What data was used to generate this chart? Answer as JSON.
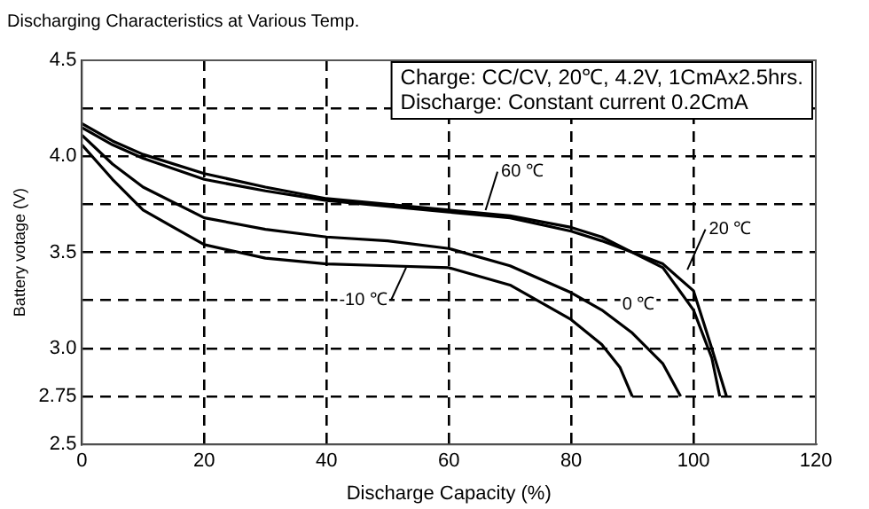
{
  "chart_data": {
    "type": "line",
    "title": "Discharging Characteristics at Various Temp.",
    "xlabel": "Discharge Capacity (%)",
    "ylabel": "Battery votage (V)",
    "annotations": [
      "Charge: CC/CV, 20℃, 4.2V, 1CmAx2.5hrs.",
      "Discharge: Constant current 0.2CmA"
    ],
    "xlim": [
      0,
      120
    ],
    "xticks": [
      0,
      20,
      40,
      60,
      80,
      100,
      120
    ],
    "ylim": [
      2.5,
      4.5
    ],
    "yticks": [
      2.5,
      2.75,
      {
        "value": 3,
        "label": "3.0"
      },
      {
        "value": 3.25,
        "label": null
      },
      3.5,
      {
        "value": 3.75,
        "label": null
      },
      {
        "value": 4,
        "label": "4.0"
      },
      {
        "value": 4.25,
        "label": null
      },
      4.5
    ],
    "grid": true,
    "legend": false,
    "marker": "none",
    "line_style": "solid",
    "series": [
      {
        "name": "60 ℃",
        "color": "#000000",
        "x": [
          0,
          5,
          10,
          20,
          30,
          40,
          50,
          60,
          70,
          80,
          85,
          90,
          95,
          100,
          103,
          104.3
        ],
        "values": [
          4.17,
          4.08,
          4.01,
          3.91,
          3.84,
          3.78,
          3.75,
          3.72,
          3.69,
          3.63,
          3.58,
          3.5,
          3.42,
          3.2,
          2.95,
          2.75
        ]
      },
      {
        "name": "20 ℃",
        "color": "#000000",
        "x": [
          0,
          5,
          10,
          20,
          30,
          40,
          50,
          60,
          70,
          80,
          85,
          90,
          95,
          100,
          103,
          105.4
        ],
        "values": [
          4.15,
          4.06,
          3.99,
          3.88,
          3.82,
          3.77,
          3.74,
          3.71,
          3.68,
          3.61,
          3.56,
          3.5,
          3.44,
          3.3,
          3.0,
          2.75
        ]
      },
      {
        "name": "0 ℃",
        "color": "#000000",
        "x": [
          0,
          5,
          10,
          20,
          30,
          40,
          50,
          60,
          70,
          80,
          85,
          90,
          95,
          97.9
        ],
        "values": [
          4.11,
          3.96,
          3.84,
          3.68,
          3.62,
          3.58,
          3.56,
          3.52,
          3.43,
          3.29,
          3.2,
          3.08,
          2.92,
          2.75
        ]
      },
      {
        "name": "-10 ℃",
        "color": "#000000",
        "x": [
          0,
          5,
          10,
          20,
          30,
          40,
          50,
          60,
          70,
          80,
          85,
          88,
          90
        ],
        "values": [
          4.06,
          3.88,
          3.72,
          3.54,
          3.47,
          3.44,
          3.43,
          3.42,
          3.33,
          3.15,
          3.02,
          2.9,
          2.75
        ]
      }
    ]
  }
}
